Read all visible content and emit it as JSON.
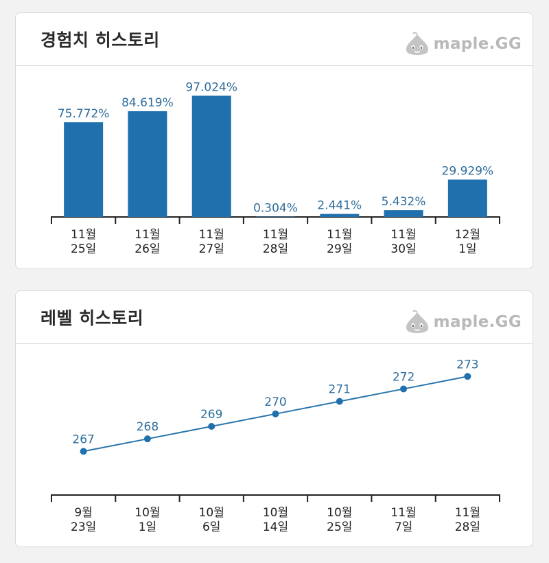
{
  "exp_card": {
    "title": "경험치 히스토리",
    "logo_text": "maple.GG"
  },
  "level_card": {
    "title": "레벨 히스토리",
    "logo_text": "maple.GG"
  },
  "colors": {
    "bar": "#2070ae",
    "value_label": "#2f6d9c",
    "axis": "#222222",
    "logo": "#b9b9b9"
  },
  "icons": {
    "logo_mascot": "slime-mascot-icon"
  },
  "chart_data": [
    {
      "type": "bar",
      "title": "경험치 히스토리",
      "categories": [
        [
          "11월",
          "25일"
        ],
        [
          "11월",
          "26일"
        ],
        [
          "11월",
          "27일"
        ],
        [
          "11월",
          "28일"
        ],
        [
          "11월",
          "29일"
        ],
        [
          "11월",
          "30일"
        ],
        [
          "12월",
          "1일"
        ]
      ],
      "values": [
        75.772,
        84.619,
        97.024,
        0.304,
        2.441,
        5.432,
        29.929
      ],
      "labels": [
        "75.772%",
        "84.619%",
        "97.024%",
        "0.304%",
        "2.441%",
        "5.432%",
        "29.929%"
      ],
      "ylim": [
        0,
        100
      ],
      "grid": false,
      "legend": "none"
    },
    {
      "type": "line",
      "title": "레벨 히스토리",
      "categories": [
        [
          "9월",
          "23일"
        ],
        [
          "10월",
          "1일"
        ],
        [
          "10월",
          "6일"
        ],
        [
          "10월",
          "14일"
        ],
        [
          "10월",
          "25일"
        ],
        [
          "11월",
          "7일"
        ],
        [
          "11월",
          "28일"
        ]
      ],
      "values": [
        267,
        268,
        269,
        270,
        271,
        272,
        273
      ],
      "labels": [
        "267",
        "268",
        "269",
        "270",
        "271",
        "272",
        "273"
      ],
      "ylim": [
        263.5,
        274.5
      ],
      "grid": false,
      "legend": "none"
    }
  ]
}
